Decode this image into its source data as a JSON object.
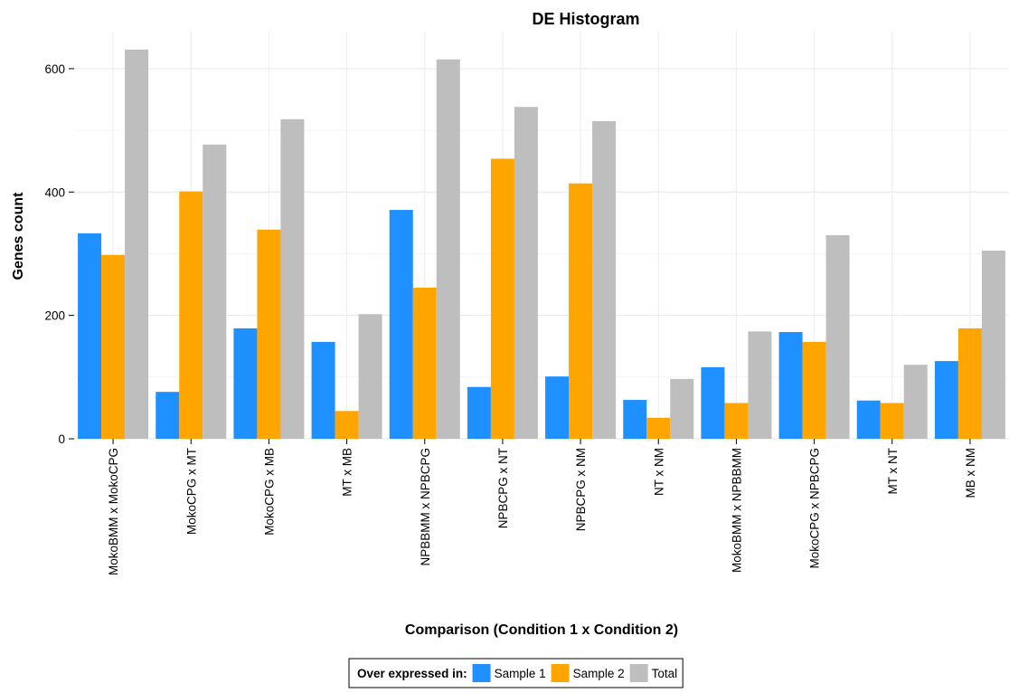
{
  "chart_data": {
    "type": "bar",
    "title": "DE Histogram",
    "xlabel": "Comparison (Condition 1 x Condition 2)",
    "ylabel": "Genes count",
    "ylim": [
      0,
      660
    ],
    "yticks": [
      0,
      200,
      400,
      600
    ],
    "grid": true,
    "categories": [
      "MokoBMM x MokoCPG",
      "MokoCPG x MT",
      "MokoCPG x MB",
      "MT x MB",
      "NPBBMM x NPBCPG",
      "NPBCPG x NT",
      "NPBCPG x NM",
      "NT x NM",
      "MokoBMM x NPBBMM",
      "MokoCPG x NPBCPG",
      "MT x NT",
      "MB x NM"
    ],
    "series": [
      {
        "name": "Sample 1",
        "color": "#1e90ff",
        "values": [
          333,
          76,
          179,
          157,
          371,
          84,
          101,
          63,
          116,
          173,
          62,
          126
        ]
      },
      {
        "name": "Sample 2",
        "color": "#ffa500",
        "values": [
          298,
          401,
          339,
          45,
          245,
          454,
          414,
          34,
          58,
          157,
          58,
          179
        ]
      },
      {
        "name": "Total",
        "color": "#bebebe",
        "values": [
          631,
          477,
          518,
          202,
          615,
          538,
          515,
          97,
          174,
          330,
          120,
          305
        ]
      }
    ],
    "legend": {
      "title": "Over expressed in:",
      "placement": "bottom"
    }
  }
}
